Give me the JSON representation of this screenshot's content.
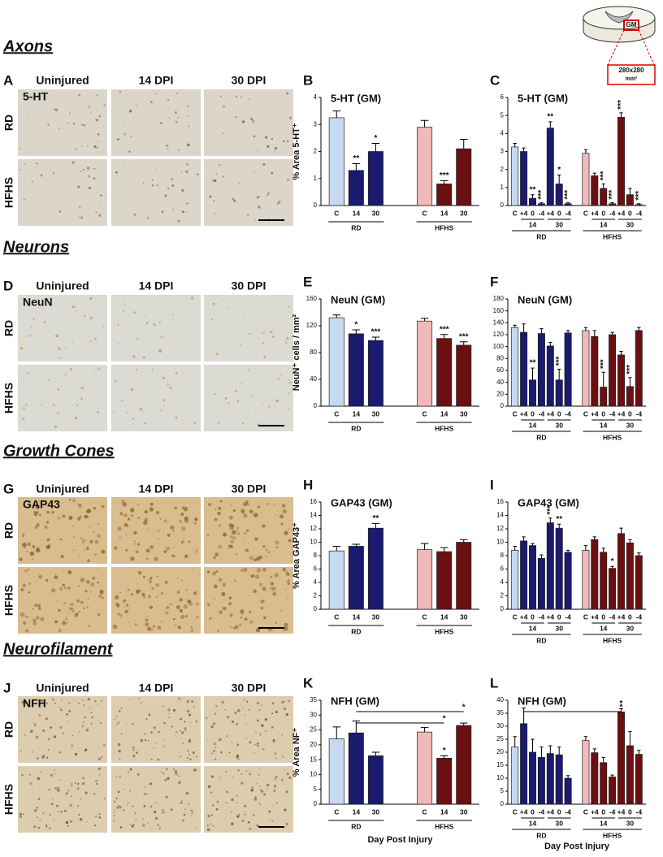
{
  "inset": {
    "region": "GM",
    "size_lines": [
      "280x280",
      "mm²"
    ]
  },
  "panels": [
    {
      "heading": "Axons",
      "letter": "A",
      "stain": "5-HT",
      "columns": [
        "Uninjured",
        "14 DPI",
        "30 DPI"
      ],
      "rows": [
        "RD",
        "HFHS"
      ]
    },
    {
      "heading": "Neurons",
      "letter": "D",
      "stain": "NeuN",
      "columns": [
        "Uninjured",
        "14 DPI",
        "30 DPI"
      ],
      "rows": [
        "RD",
        "HFHS"
      ]
    },
    {
      "heading": "Growth Cones",
      "letter": "G",
      "stain": "GAP43",
      "columns": [
        "Uninjured",
        "14 DPI",
        "30 DPI"
      ],
      "rows": [
        "RD",
        "HFHS"
      ]
    },
    {
      "heading": "Neurofilament",
      "letter": "J",
      "stain": "NFH",
      "columns": [
        "Uninjured",
        "14 DPI",
        "30 DPI"
      ],
      "rows": [
        "RD",
        "HFHS"
      ]
    }
  ],
  "chart_data": [
    {
      "type": "bar",
      "letter": "B",
      "title": "5-HT (GM)",
      "ylabel": "% Area 5-HT⁺",
      "ylim": [
        0,
        4
      ],
      "yticks": [
        0,
        1,
        2,
        3,
        4
      ],
      "groups": [
        {
          "label": "RD",
          "colors": [
            "#c6d9f1",
            "#1a1a6e"
          ],
          "categories": [
            "C",
            "14",
            "30"
          ],
          "values": [
            3.25,
            1.3,
            2.0
          ],
          "errors": [
            0.25,
            0.25,
            0.3
          ],
          "stars": [
            null,
            "**",
            "*"
          ]
        },
        {
          "label": "HFHS",
          "colors": [
            "#f2b9b9",
            "#6b0f12"
          ],
          "categories": [
            "C",
            "14",
            "30"
          ],
          "values": [
            2.9,
            0.8,
            2.1
          ],
          "errors": [
            0.25,
            0.12,
            0.35
          ],
          "stars": [
            null,
            "***",
            null
          ]
        }
      ]
    },
    {
      "type": "bar",
      "letter": "C",
      "title": "5-HT (GM)",
      "ylim": [
        0,
        6
      ],
      "yticks": [
        0,
        1,
        2,
        3,
        4,
        5,
        6
      ],
      "groups": [
        {
          "label": "RD",
          "subgroups": [
            "14",
            "30"
          ],
          "colors": [
            "#c6d9f1",
            "#1a1a6e"
          ],
          "categories": [
            "C",
            "+4",
            "0",
            "-4",
            "+4",
            "0",
            "-4"
          ],
          "values": [
            3.25,
            3.0,
            0.4,
            0.1,
            4.3,
            1.2,
            0.1
          ],
          "errors": [
            0.2,
            0.2,
            0.2,
            0.05,
            0.35,
            0.5,
            0.05
          ],
          "stars": [
            null,
            null,
            "**",
            "***",
            "**",
            "*",
            "***"
          ]
        },
        {
          "label": "HFHS",
          "subgroups": [
            "14",
            "30"
          ],
          "colors": [
            "#f2b9b9",
            "#6b0f12"
          ],
          "categories": [
            "C",
            "+4",
            "0",
            "-4",
            "+4",
            "0",
            "-4"
          ],
          "values": [
            2.9,
            1.65,
            0.95,
            0.1,
            4.9,
            0.6,
            0.05
          ],
          "errors": [
            0.2,
            0.15,
            0.25,
            0.05,
            0.25,
            0.35,
            0.05
          ],
          "stars": [
            null,
            null,
            "***",
            "***",
            "***",
            null,
            "***"
          ]
        }
      ]
    },
    {
      "type": "bar",
      "letter": "E",
      "title": "NeuN (GM)",
      "ylabel": "NeuN⁺ cells / mm²",
      "ylim": [
        0,
        160
      ],
      "yticks": [
        0,
        40,
        80,
        120,
        160
      ],
      "groups": [
        {
          "label": "RD",
          "colors": [
            "#c6d9f1",
            "#1a1a6e"
          ],
          "categories": [
            "C",
            "14",
            "30"
          ],
          "values": [
            132,
            108,
            98
          ],
          "errors": [
            4,
            6,
            5
          ],
          "stars": [
            null,
            "*",
            "***"
          ]
        },
        {
          "label": "HFHS",
          "colors": [
            "#f2b9b9",
            "#6b0f12"
          ],
          "categories": [
            "C",
            "14",
            "30"
          ],
          "values": [
            127,
            101,
            91
          ],
          "errors": [
            4,
            6,
            5
          ],
          "stars": [
            null,
            "***",
            "***"
          ]
        }
      ]
    },
    {
      "type": "bar",
      "letter": "F",
      "title": "NeuN (GM)",
      "ylim": [
        0,
        180
      ],
      "yticks": [
        0,
        20,
        40,
        60,
        80,
        100,
        120,
        140,
        160,
        180
      ],
      "groups": [
        {
          "label": "RD",
          "subgroups": [
            "14",
            "30"
          ],
          "colors": [
            "#c6d9f1",
            "#1a1a6e"
          ],
          "categories": [
            "C",
            "+4",
            "0",
            "-4",
            "+4",
            "0",
            "-4"
          ],
          "values": [
            132,
            124,
            44,
            122,
            101,
            44,
            123
          ],
          "errors": [
            4,
            14,
            20,
            8,
            6,
            18,
            4
          ],
          "stars": [
            null,
            null,
            "**",
            null,
            null,
            "***",
            null
          ]
        },
        {
          "label": "HFHS",
          "subgroups": [
            "14",
            "30"
          ],
          "colors": [
            "#f2b9b9",
            "#6b0f12"
          ],
          "categories": [
            "C",
            "+4",
            "0",
            "-4",
            "+4",
            "0",
            "-4"
          ],
          "values": [
            127,
            117,
            32,
            120,
            86,
            33,
            127
          ],
          "errors": [
            5,
            10,
            25,
            4,
            6,
            15,
            5
          ],
          "stars": [
            null,
            null,
            "***",
            null,
            null,
            "***",
            null
          ]
        }
      ]
    },
    {
      "type": "bar",
      "letter": "H",
      "title": "GAP43 (GM)",
      "ylabel": "% Area GAP43⁺",
      "ylim": [
        0,
        16
      ],
      "yticks": [
        0,
        2,
        4,
        6,
        8,
        10,
        12,
        14,
        16
      ],
      "groups": [
        {
          "label": "RD",
          "colors": [
            "#c6d9f1",
            "#1a1a6e"
          ],
          "categories": [
            "C",
            "14",
            "30"
          ],
          "values": [
            8.7,
            9.4,
            12.1
          ],
          "errors": [
            0.7,
            0.3,
            0.7
          ],
          "stars": [
            null,
            null,
            "**"
          ]
        },
        {
          "label": "HFHS",
          "colors": [
            "#f2b9b9",
            "#6b0f12"
          ],
          "categories": [
            "C",
            "14",
            "30"
          ],
          "values": [
            8.9,
            8.6,
            10.0
          ],
          "errors": [
            0.9,
            0.6,
            0.4
          ],
          "stars": [
            null,
            null,
            null
          ]
        }
      ]
    },
    {
      "type": "bar",
      "letter": "I",
      "title": "GAP43 (GM)",
      "ylim": [
        0,
        16
      ],
      "yticks": [
        0,
        2,
        4,
        6,
        8,
        10,
        12,
        14,
        16
      ],
      "groups": [
        {
          "label": "RD",
          "subgroups": [
            "14",
            "30"
          ],
          "colors": [
            "#c6d9f1",
            "#1a1a6e"
          ],
          "categories": [
            "C",
            "+4",
            "0",
            "-4",
            "+4",
            "0",
            "-4"
          ],
          "values": [
            8.8,
            10.2,
            9.5,
            7.6,
            12.9,
            12.1,
            8.5
          ],
          "errors": [
            0.6,
            0.6,
            0.3,
            0.5,
            0.7,
            0.6,
            0.3
          ],
          "stars": [
            null,
            null,
            null,
            null,
            "***",
            "**",
            null
          ]
        },
        {
          "label": "HFHS",
          "subgroups": [
            "14",
            "30"
          ],
          "colors": [
            "#f2b9b9",
            "#6b0f12"
          ],
          "categories": [
            "C",
            "+4",
            "0",
            "-4",
            "+4",
            "0",
            "-4"
          ],
          "values": [
            8.8,
            10.4,
            8.5,
            6.1,
            11.3,
            9.9,
            8.0
          ],
          "errors": [
            0.7,
            0.4,
            0.6,
            0.3,
            0.8,
            0.5,
            0.4
          ],
          "stars": [
            null,
            null,
            null,
            "*",
            null,
            null,
            null
          ]
        }
      ]
    },
    {
      "type": "bar",
      "letter": "K",
      "title": "NFH (GM)",
      "ylabel": "% Area NF⁺",
      "xlabel": "Day Post Injury",
      "ylim": [
        0,
        35
      ],
      "yticks": [
        0,
        5,
        10,
        15,
        20,
        25,
        30,
        35
      ],
      "groups": [
        {
          "label": "RD",
          "colors": [
            "#c6d9f1",
            "#1a1a6e"
          ],
          "categories": [
            "C",
            "14",
            "30"
          ],
          "values": [
            22,
            24,
            16.3
          ],
          "errors": [
            4,
            4,
            1.2
          ],
          "stars": [
            null,
            null,
            null
          ]
        },
        {
          "label": "HFHS",
          "colors": [
            "#f2b9b9",
            "#6b0f12"
          ],
          "categories": [
            "C",
            "14",
            "30"
          ],
          "values": [
            24.3,
            15.5,
            26.5
          ],
          "errors": [
            1.5,
            0.8,
            0.8
          ],
          "stars": [
            null,
            "*",
            null
          ]
        }
      ],
      "comparisons": [
        {
          "from": [
            0,
            1
          ],
          "to": [
            1,
            2
          ],
          "label": "*"
        },
        {
          "from": [
            0,
            1
          ],
          "to": [
            1,
            1
          ],
          "label": "*"
        }
      ]
    },
    {
      "type": "bar",
      "letter": "L",
      "title": "NFH (GM)",
      "xlabel": "Day Post Injury",
      "ylim": [
        0,
        40
      ],
      "yticks": [
        0,
        5,
        10,
        15,
        20,
        25,
        30,
        35,
        40
      ],
      "groups": [
        {
          "label": "RD",
          "subgroups": [
            "14",
            "30"
          ],
          "colors": [
            "#c6d9f1",
            "#1a1a6e"
          ],
          "categories": [
            "C",
            "+4",
            "0",
            "-4",
            "+4",
            "0",
            "-4"
          ],
          "values": [
            22,
            31,
            20,
            18,
            19.5,
            19,
            10
          ],
          "errors": [
            4,
            6,
            5,
            4,
            3,
            3,
            1
          ],
          "stars": [
            null,
            null,
            null,
            null,
            null,
            null,
            null
          ]
        },
        {
          "label": "HFHS",
          "subgroups": [
            "14",
            "30"
          ],
          "colors": [
            "#f2b9b9",
            "#6b0f12"
          ],
          "categories": [
            "C",
            "+4",
            "0",
            "-4",
            "+4",
            "0",
            "-4"
          ],
          "values": [
            24.5,
            19.8,
            16,
            10.5,
            35.5,
            22.5,
            19.2
          ],
          "errors": [
            1.5,
            1.5,
            2,
            0.7,
            1.2,
            5.5,
            1.5
          ],
          "stars": [
            null,
            null,
            null,
            null,
            "*",
            null,
            null
          ]
        }
      ],
      "comparisons": [
        {
          "from": [
            0,
            1
          ],
          "to": [
            1,
            4
          ],
          "label": "*"
        }
      ]
    }
  ]
}
